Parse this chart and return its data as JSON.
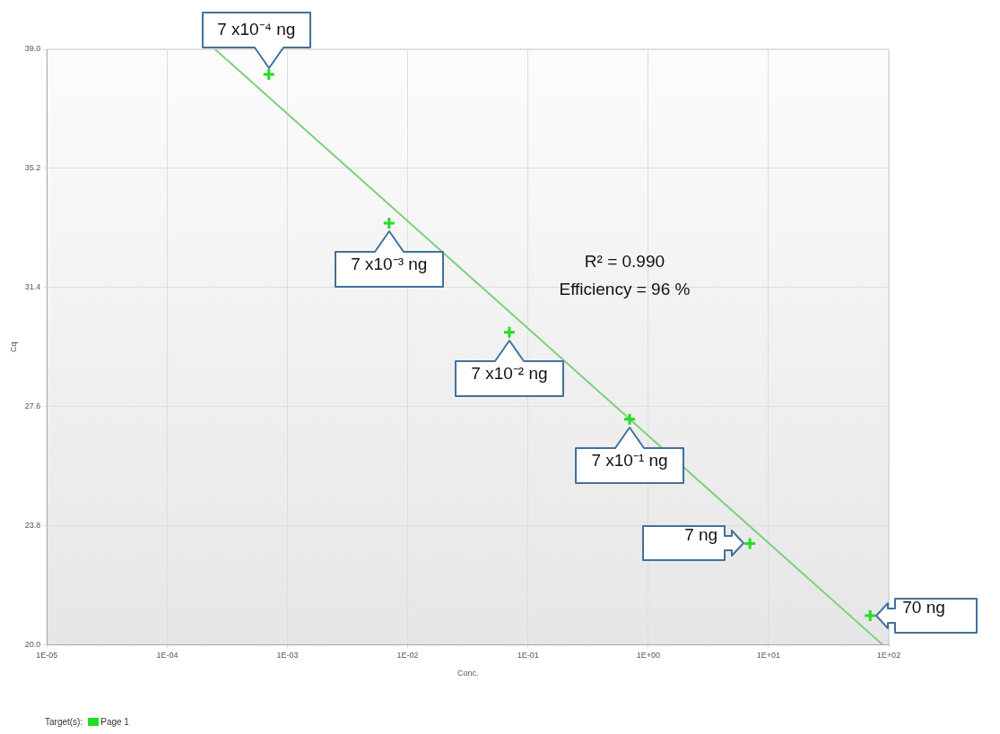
{
  "chart_data": {
    "type": "scatter",
    "xlabel": "Conc.",
    "ylabel": "Cq",
    "legend_title": "Target(s):",
    "legend": "bottom left",
    "log": "x",
    "grid": true,
    "xlim": [
      1e-05,
      100
    ],
    "xticks": [
      {
        "value": 1e-05,
        "label": "1E-05"
      },
      {
        "value": 0.0001,
        "label": "1E-04"
      },
      {
        "value": 0.001,
        "label": "1E-03"
      },
      {
        "value": 0.01,
        "label": "1E-02"
      },
      {
        "value": 0.1,
        "label": "1E-01"
      },
      {
        "value": 1,
        "label": "1E+00"
      },
      {
        "value": 10,
        "label": "1E+01"
      },
      {
        "value": 100,
        "label": "1E+02"
      }
    ],
    "ylim": [
      20,
      39
    ],
    "yticks": [
      {
        "value": 20,
        "label": "20.0"
      },
      23.8,
      27.6,
      31.4,
      35.2,
      {
        "value": 39,
        "label": "39.0"
      }
    ],
    "series": [
      {
        "name": "Page 1",
        "marker": "cross",
        "color": "#22dd22",
        "x": [
          0.0007,
          0.007,
          0.07,
          0.7,
          7,
          70
        ],
        "values": [
          38.2,
          33.45,
          29.97,
          27.2,
          23.23,
          20.93
        ]
      },
      {
        "type": "line",
        "marker": "none",
        "color": "#7fcf7f",
        "x": [
          0.00025,
          89
        ],
        "values": [
          39,
          20
        ]
      }
    ],
    "annotations": [
      {
        "text": "7 x10⁻⁴ ng",
        "x": 0.0007,
        "y": 38.2
      },
      {
        "text": "7 x10⁻³ ng",
        "x": 0.007,
        "y": 33.45
      },
      {
        "text": "7 x10⁻² ng",
        "x": 0.07,
        "y": 29.97
      },
      {
        "text": "7 x10⁻¹ ng",
        "x": 0.7,
        "y": 27.2
      },
      {
        "text": "7 ng",
        "x": 7,
        "y": 23.23
      },
      {
        "text": "70 ng",
        "x": 70,
        "y": 20.93
      },
      "R² = 0.990",
      "Efficiency = 96 %"
    ]
  }
}
